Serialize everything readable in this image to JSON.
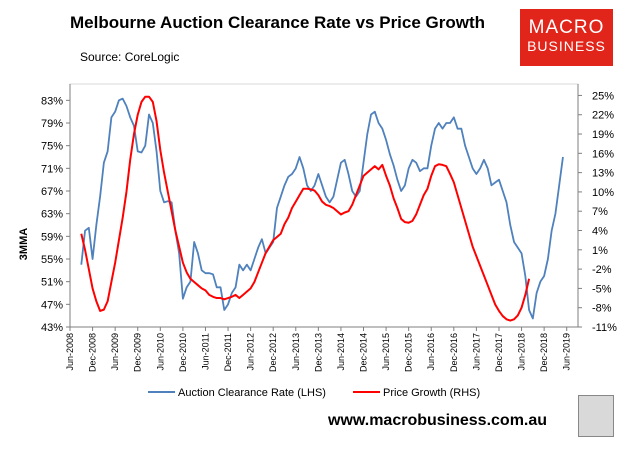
{
  "header": {
    "title": "Melbourne Auction Clearance Rate vs Price Growth",
    "source": "Source: CoreLogic",
    "logo_line1": "MACRO",
    "logo_line2": "BUSINESS",
    "website": "www.macrobusiness.com.au"
  },
  "colors": {
    "clearance": "#4f81bd",
    "price": "#ff0000",
    "logo_bg": "#e1251b"
  },
  "chart_data": {
    "type": "line",
    "ylabel": "3MMA",
    "y_left": {
      "ticks": [
        "43%",
        "47%",
        "51%",
        "55%",
        "59%",
        "63%",
        "67%",
        "71%",
        "75%",
        "79%",
        "83%"
      ],
      "range": [
        43,
        85
      ]
    },
    "y_right": {
      "ticks": [
        "-11%",
        "-8%",
        "-5%",
        "-2%",
        "1%",
        "4%",
        "7%",
        "10%",
        "13%",
        "16%",
        "19%",
        "22%",
        "25%"
      ],
      "range": [
        -11,
        26
      ]
    },
    "x_ticks": [
      "Jun-2008",
      "Dec-2008",
      "Jun-2009",
      "Dec-2009",
      "Jun-2010",
      "Dec-2010",
      "Jun-2011",
      "Dec-2011",
      "Jun-2012",
      "Dec-2012",
      "Jun-2013",
      "Dec-2013",
      "Jun-2014",
      "Dec-2014",
      "Jun-2015",
      "Dec-2015",
      "Jun-2016",
      "Dec-2016",
      "Jun-2017",
      "Dec-2017",
      "Jun-2018",
      "Dec-2018",
      "Jun-2019"
    ],
    "x_range": [
      "2008-06",
      "2019-09"
    ],
    "series": [
      {
        "name": "Auction Clearance Rate (LHS)",
        "axis": "left",
        "points": [
          [
            "2008-09",
            54.0
          ],
          [
            "2008-10",
            60.0
          ],
          [
            "2008-11",
            60.5
          ],
          [
            "2008-12",
            55.0
          ],
          [
            "2009-01",
            61.0
          ],
          [
            "2009-02",
            66.0
          ],
          [
            "2009-03",
            72.0
          ],
          [
            "2009-04",
            74.0
          ],
          [
            "2009-05",
            80.0
          ],
          [
            "2009-06",
            81.0
          ],
          [
            "2009-07",
            83.0
          ],
          [
            "2009-08",
            83.3
          ],
          [
            "2009-09",
            82.0
          ],
          [
            "2009-10",
            80.0
          ],
          [
            "2009-11",
            78.5
          ],
          [
            "2009-12",
            74.0
          ],
          [
            "2010-01",
            73.8
          ],
          [
            "2010-02",
            75.0
          ],
          [
            "2010-03",
            80.5
          ],
          [
            "2010-04",
            79.0
          ],
          [
            "2010-05",
            74.0
          ],
          [
            "2010-06",
            67.0
          ],
          [
            "2010-07",
            65.0
          ],
          [
            "2010-08",
            65.2
          ],
          [
            "2010-09",
            65.0
          ],
          [
            "2010-10",
            60.0
          ],
          [
            "2010-11",
            56.0
          ],
          [
            "2010-12",
            48.0
          ],
          [
            "2011-01",
            50.0
          ],
          [
            "2011-02",
            51.0
          ],
          [
            "2011-03",
            58.0
          ],
          [
            "2011-04",
            56.0
          ],
          [
            "2011-05",
            53.0
          ],
          [
            "2011-06",
            52.5
          ],
          [
            "2011-07",
            52.5
          ],
          [
            "2011-08",
            52.3
          ],
          [
            "2011-09",
            50.0
          ],
          [
            "2011-10",
            50.0
          ],
          [
            "2011-11",
            46.0
          ],
          [
            "2011-12",
            47.0
          ],
          [
            "2012-01",
            49.0
          ],
          [
            "2012-02",
            50.0
          ],
          [
            "2012-03",
            54.0
          ],
          [
            "2012-04",
            53.0
          ],
          [
            "2012-05",
            54.0
          ],
          [
            "2012-06",
            53.0
          ],
          [
            "2012-07",
            55.0
          ],
          [
            "2012-08",
            57.0
          ],
          [
            "2012-09",
            58.5
          ],
          [
            "2012-10",
            56.0
          ],
          [
            "2012-11",
            57.0
          ],
          [
            "2012-12",
            58.0
          ],
          [
            "2013-01",
            64.0
          ],
          [
            "2013-02",
            66.0
          ],
          [
            "2013-03",
            68.0
          ],
          [
            "2013-04",
            69.5
          ],
          [
            "2013-05",
            70.0
          ],
          [
            "2013-06",
            71.0
          ],
          [
            "2013-07",
            73.0
          ],
          [
            "2013-08",
            71.0
          ],
          [
            "2013-09",
            68.0
          ],
          [
            "2013-10",
            67.0
          ],
          [
            "2013-11",
            68.0
          ],
          [
            "2013-12",
            70.0
          ],
          [
            "2014-01",
            68.0
          ],
          [
            "2014-02",
            66.0
          ],
          [
            "2014-03",
            65.0
          ],
          [
            "2014-04",
            66.0
          ],
          [
            "2014-05",
            69.0
          ],
          [
            "2014-06",
            72.0
          ],
          [
            "2014-07",
            72.5
          ],
          [
            "2014-08",
            70.0
          ],
          [
            "2014-09",
            67.0
          ],
          [
            "2014-10",
            66.0
          ],
          [
            "2014-11",
            67.0
          ],
          [
            "2014-12",
            72.0
          ],
          [
            "2015-01",
            77.0
          ],
          [
            "2015-02",
            80.5
          ],
          [
            "2015-03",
            81.0
          ],
          [
            "2015-04",
            79.0
          ],
          [
            "2015-05",
            78.0
          ],
          [
            "2015-06",
            76.0
          ],
          [
            "2015-07",
            73.5
          ],
          [
            "2015-08",
            71.5
          ],
          [
            "2015-09",
            69.0
          ],
          [
            "2015-10",
            67.0
          ],
          [
            "2015-11",
            68.0
          ],
          [
            "2015-12",
            71.0
          ],
          [
            "2016-01",
            72.5
          ],
          [
            "2016-02",
            72.0
          ],
          [
            "2016-03",
            70.5
          ],
          [
            "2016-04",
            71.0
          ],
          [
            "2016-05",
            71.0
          ],
          [
            "2016-06",
            75.0
          ],
          [
            "2016-07",
            78.0
          ],
          [
            "2016-08",
            79.0
          ],
          [
            "2016-09",
            78.0
          ],
          [
            "2016-10",
            79.0
          ],
          [
            "2016-11",
            79.0
          ],
          [
            "2016-12",
            80.0
          ],
          [
            "2017-01",
            78.0
          ],
          [
            "2017-02",
            78.0
          ],
          [
            "2017-03",
            75.0
          ],
          [
            "2017-04",
            73.0
          ],
          [
            "2017-05",
            71.0
          ],
          [
            "2017-06",
            70.0
          ],
          [
            "2017-07",
            71.0
          ],
          [
            "2017-08",
            72.5
          ],
          [
            "2017-09",
            71.0
          ],
          [
            "2017-10",
            68.0
          ],
          [
            "2017-11",
            68.5
          ],
          [
            "2017-12",
            69.0
          ],
          [
            "2018-01",
            67.0
          ],
          [
            "2018-02",
            65.0
          ],
          [
            "2018-03",
            61.0
          ],
          [
            "2018-04",
            58.0
          ],
          [
            "2018-05",
            57.0
          ],
          [
            "2018-06",
            56.0
          ],
          [
            "2018-07",
            52.0
          ],
          [
            "2018-08",
            46.0
          ],
          [
            "2018-09",
            44.5
          ],
          [
            "2018-10",
            49.0
          ],
          [
            "2018-11",
            51.0
          ],
          [
            "2018-12",
            52.0
          ],
          [
            "2019-01",
            55.0
          ],
          [
            "2019-02",
            60.0
          ],
          [
            "2019-03",
            63.0
          ],
          [
            "2019-04",
            68.0
          ],
          [
            "2019-05",
            73.0
          ]
        ]
      },
      {
        "name": "Price Growth (RHS)",
        "axis": "right",
        "points": [
          [
            "2008-09",
            3.5
          ],
          [
            "2008-10",
            1.0
          ],
          [
            "2008-11",
            -2.0
          ],
          [
            "2008-12",
            -5.0
          ],
          [
            "2009-01",
            -7.0
          ],
          [
            "2009-02",
            -8.5
          ],
          [
            "2009-03",
            -8.3
          ],
          [
            "2009-04",
            -7.0
          ],
          [
            "2009-05",
            -4.0
          ],
          [
            "2009-06",
            -1.0
          ],
          [
            "2009-07",
            2.5
          ],
          [
            "2009-08",
            6.0
          ],
          [
            "2009-09",
            10.0
          ],
          [
            "2009-10",
            15.0
          ],
          [
            "2009-11",
            19.0
          ],
          [
            "2009-12",
            22.0
          ],
          [
            "2010-01",
            24.0
          ],
          [
            "2010-02",
            24.8
          ],
          [
            "2010-03",
            24.8
          ],
          [
            "2010-04",
            24.0
          ],
          [
            "2010-05",
            21.0
          ],
          [
            "2010-06",
            16.5
          ],
          [
            "2010-07",
            13.0
          ],
          [
            "2010-08",
            10.0
          ],
          [
            "2010-09",
            7.0
          ],
          [
            "2010-10",
            4.0
          ],
          [
            "2010-11",
            1.5
          ],
          [
            "2010-12",
            -1.0
          ],
          [
            "2011-01",
            -2.5
          ],
          [
            "2011-02",
            -3.5
          ],
          [
            "2011-03",
            -4.0
          ],
          [
            "2011-04",
            -4.5
          ],
          [
            "2011-05",
            -5.0
          ],
          [
            "2011-06",
            -5.3
          ],
          [
            "2011-07",
            -6.0
          ],
          [
            "2011-08",
            -6.3
          ],
          [
            "2011-09",
            -6.5
          ],
          [
            "2011-10",
            -6.5
          ],
          [
            "2011-11",
            -6.7
          ],
          [
            "2011-12",
            -6.5
          ],
          [
            "2012-01",
            -6.3
          ],
          [
            "2012-02",
            -6.0
          ],
          [
            "2012-03",
            -6.5
          ],
          [
            "2012-04",
            -6.0
          ],
          [
            "2012-05",
            -5.5
          ],
          [
            "2012-06",
            -5.0
          ],
          [
            "2012-07",
            -4.0
          ],
          [
            "2012-08",
            -2.5
          ],
          [
            "2012-09",
            -1.0
          ],
          [
            "2012-10",
            0.5
          ],
          [
            "2012-11",
            1.5
          ],
          [
            "2012-12",
            2.5
          ],
          [
            "2013-01",
            3.0
          ],
          [
            "2013-02",
            3.5
          ],
          [
            "2013-03",
            5.0
          ],
          [
            "2013-04",
            6.0
          ],
          [
            "2013-05",
            7.5
          ],
          [
            "2013-06",
            8.5
          ],
          [
            "2013-07",
            9.5
          ],
          [
            "2013-08",
            10.5
          ],
          [
            "2013-09",
            10.5
          ],
          [
            "2013-10",
            10.4
          ],
          [
            "2013-11",
            10.2
          ],
          [
            "2013-12",
            9.5
          ],
          [
            "2014-01",
            8.5
          ],
          [
            "2014-02",
            8.0
          ],
          [
            "2014-03",
            7.8
          ],
          [
            "2014-04",
            7.5
          ],
          [
            "2014-05",
            7.0
          ],
          [
            "2014-06",
            6.5
          ],
          [
            "2014-07",
            6.8
          ],
          [
            "2014-08",
            7.0
          ],
          [
            "2014-09",
            8.0
          ],
          [
            "2014-10",
            9.5
          ],
          [
            "2014-11",
            11.0
          ],
          [
            "2014-12",
            12.5
          ],
          [
            "2015-01",
            13.0
          ],
          [
            "2015-02",
            13.5
          ],
          [
            "2015-03",
            14.0
          ],
          [
            "2015-04",
            13.5
          ],
          [
            "2015-05",
            14.2
          ],
          [
            "2015-06",
            12.5
          ],
          [
            "2015-07",
            11.0
          ],
          [
            "2015-08",
            9.0
          ],
          [
            "2015-09",
            7.5
          ],
          [
            "2015-10",
            5.8
          ],
          [
            "2015-11",
            5.3
          ],
          [
            "2015-12",
            5.2
          ],
          [
            "2016-01",
            5.5
          ],
          [
            "2016-02",
            6.5
          ],
          [
            "2016-03",
            8.0
          ],
          [
            "2016-04",
            9.5
          ],
          [
            "2016-05",
            10.5
          ],
          [
            "2016-06",
            12.5
          ],
          [
            "2016-07",
            14.0
          ],
          [
            "2016-08",
            14.3
          ],
          [
            "2016-09",
            14.2
          ],
          [
            "2016-10",
            14.0
          ],
          [
            "2016-11",
            12.8
          ],
          [
            "2016-12",
            11.5
          ],
          [
            "2017-01",
            9.5
          ],
          [
            "2017-02",
            7.5
          ],
          [
            "2017-03",
            5.5
          ],
          [
            "2017-04",
            3.5
          ],
          [
            "2017-05",
            1.5
          ],
          [
            "2017-06",
            0.0
          ],
          [
            "2017-07",
            -1.5
          ],
          [
            "2017-08",
            -3.0
          ],
          [
            "2017-09",
            -4.5
          ],
          [
            "2017-10",
            -6.0
          ],
          [
            "2017-11",
            -7.5
          ],
          [
            "2017-12",
            -8.5
          ],
          [
            "2018-01",
            -9.3
          ],
          [
            "2018-02",
            -9.8
          ],
          [
            "2018-03",
            -10.0
          ],
          [
            "2018-04",
            -9.8
          ],
          [
            "2018-05",
            -9.2
          ],
          [
            "2018-06",
            -8.0
          ],
          [
            "2018-07",
            -6.0
          ],
          [
            "2018-08",
            -3.5
          ]
        ]
      }
    ],
    "legend_position": "bottom",
    "grid": false
  }
}
